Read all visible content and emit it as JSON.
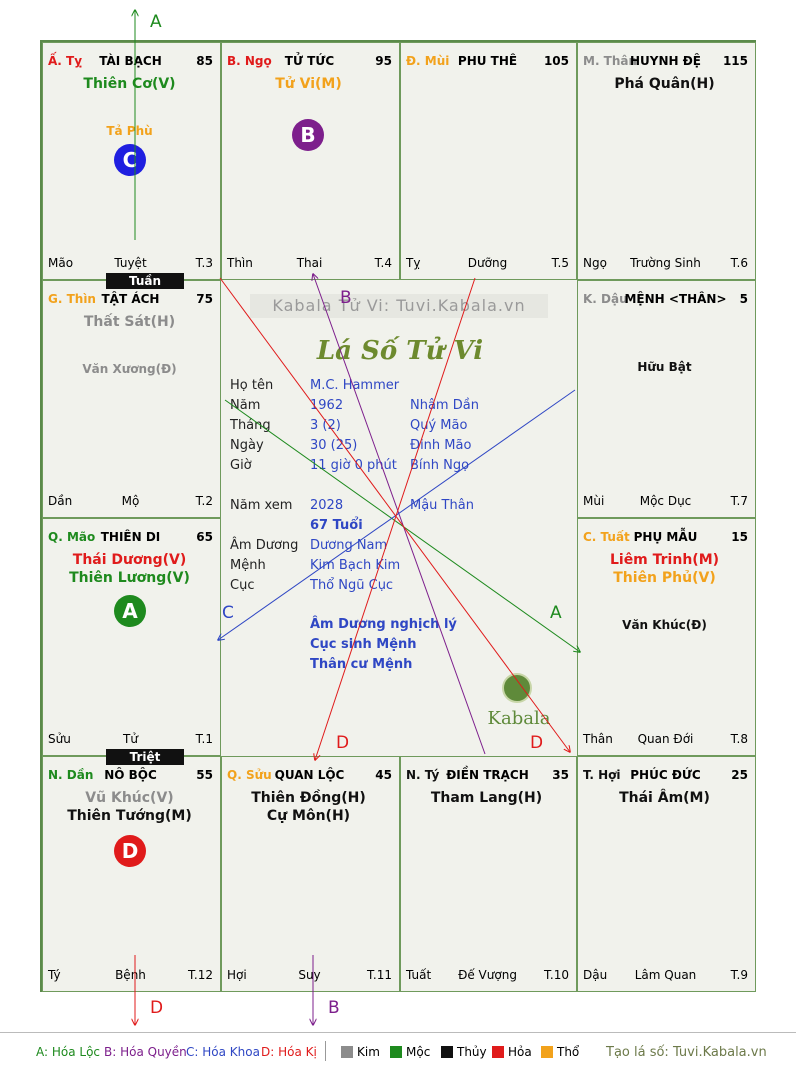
{
  "watermark": "Kabala Tử Vi: Tuvi.Kabala.vn",
  "logo_title": "Lá Số Tử Vi",
  "brand": "Kabala",
  "colors": {
    "green": "#1e8a1e",
    "red": "#e01b1b",
    "orange": "#f2a21c",
    "gray": "#8c8c8c",
    "black": "#111111",
    "blue": "#2f47c4",
    "purple": "#7d1f8c"
  },
  "cells": [
    {
      "id": "ty-snake",
      "can": "Ấ. Tỵ",
      "can_color": "#e01b1b",
      "palace": "TÀI BẠCH",
      "score": "85",
      "stars": [
        {
          "t": "Thiên Cơ(V)",
          "c": "#1e8a1e"
        }
      ],
      "minors": [
        {
          "t": "Tả Phù",
          "c": "#f2a21c"
        }
      ],
      "branch": "Mão",
      "phase": "Tuyệt",
      "tcode": "T.3"
    },
    {
      "id": "ngo-horse",
      "can": "B. Ngọ",
      "can_color": "#e01b1b",
      "palace": "TỬ TỨC",
      "score": "95",
      "stars": [
        {
          "t": "Tử Vi(M)",
          "c": "#f2a21c"
        }
      ],
      "minors": [],
      "branch": "Thìn",
      "phase": "Thai",
      "tcode": "T.4"
    },
    {
      "id": "mui-goat",
      "can": "Đ. Mùi",
      "can_color": "#f2a21c",
      "palace": "PHU THÊ",
      "score": "105",
      "stars": [],
      "minors": [],
      "branch": "Tỵ",
      "phase": "Dưỡng",
      "tcode": "T.5"
    },
    {
      "id": "than-monkey",
      "can": "M. Thân",
      "can_color": "#8c8c8c",
      "palace": "HUYNH ĐỆ",
      "score": "115",
      "stars": [
        {
          "t": "Phá Quân(H)",
          "c": "#111111"
        }
      ],
      "minors": [],
      "branch": "Ngọ",
      "phase": "Trường Sinh",
      "tcode": "T.6"
    },
    {
      "id": "thin-dragon",
      "can": "G. Thìn",
      "can_color": "#f2a21c",
      "palace": "TẬT ÁCH",
      "score": "75",
      "stars": [
        {
          "t": "Thất Sát(H)",
          "c": "#8c8c8c"
        }
      ],
      "minors": [
        {
          "t": "Văn Xương(Đ)",
          "c": "#8c8c8c"
        }
      ],
      "branch": "Dần",
      "phase": "Mộ",
      "tcode": "T.2"
    },
    {
      "id": "dau-rooster",
      "can": "K. Dậu",
      "can_color": "#8c8c8c",
      "palace": "MỆNH <THÂN>",
      "score": "5",
      "stars": [],
      "minors": [
        {
          "t": "Hữu Bật",
          "c": "#111111"
        }
      ],
      "branch": "Mùi",
      "phase": "Mộc Dục",
      "tcode": "T.7"
    },
    {
      "id": "mao-cat",
      "can": "Q. Mão",
      "can_color": "#1e8a1e",
      "palace": "THIÊN DI",
      "score": "65",
      "stars": [
        {
          "t": "Thái Dương(V)",
          "c": "#e01b1b"
        },
        {
          "t": "Thiên Lương(V)",
          "c": "#1e8a1e"
        }
      ],
      "minors": [],
      "branch": "Sửu",
      "phase": "Tử",
      "tcode": "T.1"
    },
    {
      "id": "tuat-dog",
      "can": "C. Tuất",
      "can_color": "#f2a21c",
      "palace": "PHỤ MẪU",
      "score": "15",
      "stars": [
        {
          "t": "Liêm Trinh(M)",
          "c": "#e01b1b"
        },
        {
          "t": "Thiên Phủ(V)",
          "c": "#f2a21c"
        }
      ],
      "minors": [
        {
          "t": "Văn Khúc(Đ)",
          "c": "#111111"
        }
      ],
      "branch": "Thân",
      "phase": "Quan Đới",
      "tcode": "T.8"
    },
    {
      "id": "dan-tiger",
      "can": "N. Dần",
      "can_color": "#1e8a1e",
      "palace": "NÔ BỘC",
      "score": "55",
      "stars": [
        {
          "t": "Vũ Khúc(V)",
          "c": "#8c8c8c"
        },
        {
          "t": "Thiên Tướng(M)",
          "c": "#111111"
        }
      ],
      "minors": [],
      "branch": "Tý",
      "phase": "Bệnh",
      "tcode": "T.12"
    },
    {
      "id": "suu-ox",
      "can": "Q. Sửu",
      "can_color": "#f2a21c",
      "palace": "QUAN LỘC",
      "score": "45",
      "stars": [
        {
          "t": "Thiên Đồng(H)",
          "c": "#111111"
        },
        {
          "t": "Cự Môn(H)",
          "c": "#111111"
        }
      ],
      "minors": [],
      "branch": "Hợi",
      "phase": "Suy",
      "tcode": "T.11"
    },
    {
      "id": "ty-rat",
      "can": "N. Tý",
      "can_color": "#111111",
      "palace": "ĐIỀN TRẠCH",
      "score": "35",
      "stars": [
        {
          "t": "Tham Lang(H)",
          "c": "#111111"
        }
      ],
      "minors": [],
      "branch": "Tuất",
      "phase": "Đế Vượng",
      "tcode": "T.10"
    },
    {
      "id": "hoi-pig",
      "can": "T. Hợi",
      "can_color": "#111111",
      "palace": "PHÚC ĐỨC",
      "score": "25",
      "stars": [
        {
          "t": "Thái Âm(M)",
          "c": "#111111"
        }
      ],
      "minors": [],
      "branch": "Dậu",
      "phase": "Lâm Quan",
      "tcode": "T.9"
    }
  ],
  "tags": {
    "tuan": "Tuần",
    "triet": "Triệt"
  },
  "circles": {
    "a": "A",
    "b": "B",
    "c": "C",
    "d": "D"
  },
  "line_labels": {
    "a": "A",
    "b": "B",
    "c": "C",
    "d": "D"
  },
  "info": [
    {
      "label": "Họ tên",
      "v1": "M.C. Hammer",
      "v2": ""
    },
    {
      "label": "Năm",
      "v1": "1962",
      "v2": "Nhâm Dần"
    },
    {
      "label": "Tháng",
      "v1": "3  (2)",
      "v2": "Quý Mão"
    },
    {
      "label": "Ngày",
      "v1": "30  (25)",
      "v2": "Đinh Mão"
    },
    {
      "label": "Giờ",
      "v1": "11 giờ 0 phút",
      "v2": "Bính Ngọ"
    },
    {
      "label": "Năm xem",
      "v1": "2028",
      "v2": "Mậu Thân"
    },
    {
      "label": "",
      "v1": "67 Tuổi",
      "v2": ""
    },
    {
      "label": "Âm Dương",
      "v1": "Dương Nam",
      "v2": ""
    },
    {
      "label": "Mệnh",
      "v1": "Kim Bạch Kim",
      "v2": ""
    },
    {
      "label": "Cục",
      "v1": "Thổ Ngũ Cục",
      "v2": ""
    }
  ],
  "notes": [
    "Âm Dương nghịch lý",
    "Cục sinh Mệnh",
    "Thân cư Mệnh"
  ],
  "legend": {
    "a": "A: Hóa Lộc",
    "b": "B: Hóa Quyền",
    "c": "C: Hóa Khoa",
    "d": "D: Hóa Kị",
    "elements": [
      {
        "name": "Kim",
        "color": "#8c8c8c"
      },
      {
        "name": "Mộc",
        "color": "#1e8a1e"
      },
      {
        "name": "Thủy",
        "color": "#111111"
      },
      {
        "name": "Hỏa",
        "color": "#e01b1b"
      },
      {
        "name": "Thổ",
        "color": "#f2a21c"
      }
    ],
    "site": "Tạo lá số: Tuvi.Kabala.vn"
  }
}
